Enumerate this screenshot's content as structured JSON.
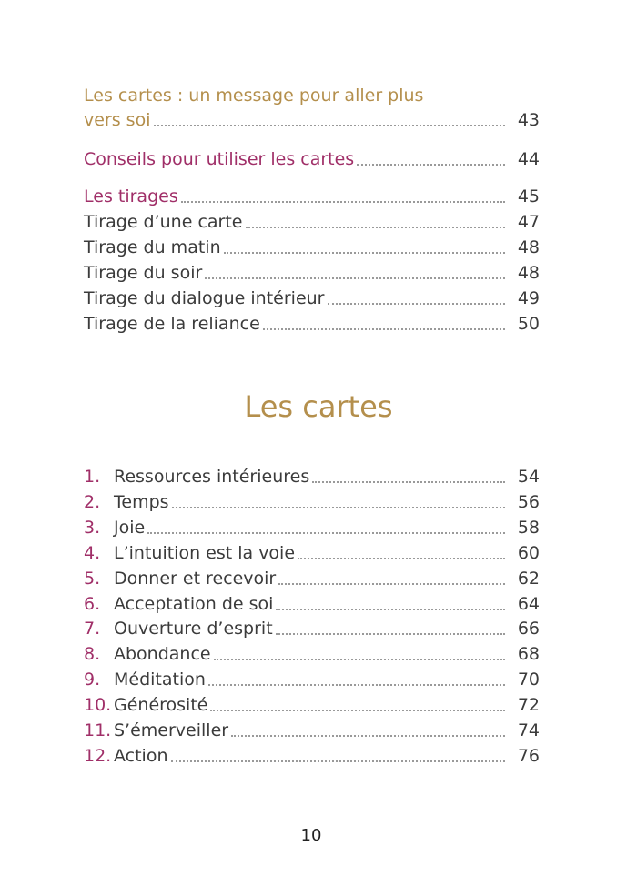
{
  "toc": {
    "intro": [
      {
        "title_lines": [
          "Les cartes : un message pour aller plus",
          "vers soi"
        ],
        "page": "43",
        "style": "gold"
      },
      {
        "title_lines": [
          "Conseils pour utiliser les cartes"
        ],
        "page": "44",
        "style": "magenta"
      },
      {
        "title_lines": [
          "Les tirages"
        ],
        "page": "45",
        "style": "magenta"
      },
      {
        "title_lines": [
          "Tirage d’une carte"
        ],
        "page": "47",
        "style": "plain"
      },
      {
        "title_lines": [
          "Tirage du matin"
        ],
        "page": "48",
        "style": "plain"
      },
      {
        "title_lines": [
          "Tirage du soir"
        ],
        "page": "48",
        "style": "plain"
      },
      {
        "title_lines": [
          "Tirage du dialogue intérieur"
        ],
        "page": "49",
        "style": "plain"
      },
      {
        "title_lines": [
          "Tirage de la reliance"
        ],
        "page": "50",
        "style": "plain"
      }
    ],
    "section_heading": "Les cartes",
    "cards": [
      {
        "number": "1.",
        "title": "Ressources intérieures",
        "page": "54"
      },
      {
        "number": "2.",
        "title": "Temps",
        "page": "56"
      },
      {
        "number": "3.",
        "title": "Joie",
        "page": "58"
      },
      {
        "number": "4.",
        "title": "L’intuition est la voie",
        "page": "60"
      },
      {
        "number": "5.",
        "title": "Donner et recevoir",
        "page": "62"
      },
      {
        "number": "6.",
        "title": "Acceptation de soi",
        "page": "64"
      },
      {
        "number": "7.",
        "title": "Ouverture d’esprit",
        "page": "66"
      },
      {
        "number": "8.",
        "title": "Abondance",
        "page": "68"
      },
      {
        "number": "9.",
        "title": "Méditation",
        "page": "70"
      },
      {
        "number": "10.",
        "title": "Générosité",
        "page": "72"
      },
      {
        "number": "11.",
        "title": "S’émerveiller",
        "page": "74"
      },
      {
        "number": "12.",
        "title": "Action",
        "page": "76"
      }
    ],
    "page_number": "10"
  }
}
